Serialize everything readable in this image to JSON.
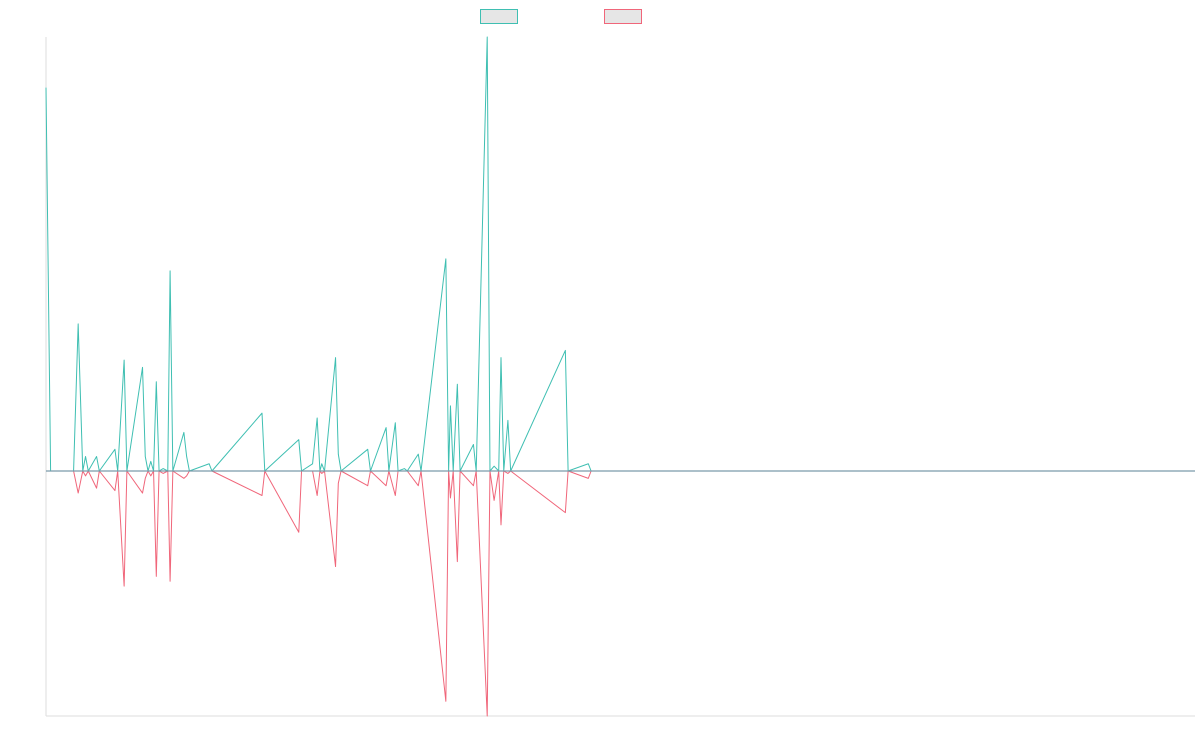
{
  "chart_data": {
    "type": "line",
    "title": "",
    "xlabel": "",
    "ylabel": "",
    "grid": false,
    "legend_position": "top-center",
    "point_count": 250,
    "ylim": [
      -100,
      180
    ],
    "colors": {
      "background": "#ffffff",
      "axis": "#dddddd",
      "baseline": "#7a9aaa",
      "legend_swatch_fill": "#e6e6e6"
    },
    "series": [
      {
        "name": "",
        "color": "#3fbfb2",
        "points": [
          [
            0,
            159
          ],
          [
            1,
            0
          ],
          [
            4,
            0
          ],
          [
            6,
            0
          ],
          [
            7,
            61
          ],
          [
            8,
            0
          ],
          [
            8.6,
            6
          ],
          [
            9.2,
            0
          ],
          [
            11,
            6
          ],
          [
            11.6,
            0
          ],
          [
            15,
            9
          ],
          [
            15.6,
            0
          ],
          [
            17,
            46
          ],
          [
            17.6,
            0
          ],
          [
            21,
            43
          ],
          [
            21.6,
            6
          ],
          [
            22.2,
            0
          ],
          [
            22.8,
            4
          ],
          [
            23.4,
            0
          ],
          [
            24,
            37
          ],
          [
            24.6,
            0
          ],
          [
            25.5,
            1
          ],
          [
            26.5,
            0
          ],
          [
            27,
            83
          ],
          [
            27.6,
            0
          ],
          [
            30,
            16
          ],
          [
            30.6,
            6
          ],
          [
            31.2,
            0
          ],
          [
            35.5,
            3
          ],
          [
            36.1,
            0
          ],
          [
            47,
            24
          ],
          [
            47.6,
            0
          ],
          [
            55,
            13
          ],
          [
            55.6,
            0
          ],
          [
            58,
            3
          ],
          [
            59,
            22
          ],
          [
            59.6,
            0
          ],
          [
            60,
            3
          ],
          [
            60.6,
            0
          ],
          [
            63,
            47
          ],
          [
            63.6,
            7
          ],
          [
            64.2,
            0
          ],
          [
            70,
            9
          ],
          [
            70.6,
            0
          ],
          [
            74,
            18
          ],
          [
            74.6,
            0
          ],
          [
            76,
            20
          ],
          [
            76.6,
            0
          ],
          [
            78,
            1
          ],
          [
            78.6,
            0
          ],
          [
            81,
            7
          ],
          [
            81.6,
            0
          ],
          [
            87,
            88
          ],
          [
            87.6,
            0
          ],
          [
            88,
            27
          ],
          [
            88.6,
            0
          ],
          [
            89.5,
            36
          ],
          [
            90.1,
            0
          ],
          [
            93,
            11
          ],
          [
            93.6,
            0
          ],
          [
            96,
            180
          ],
          [
            96.6,
            0
          ],
          [
            97.5,
            2
          ],
          [
            98.5,
            0
          ],
          [
            99,
            47
          ],
          [
            99.6,
            0
          ],
          [
            100.5,
            21
          ],
          [
            101.1,
            0
          ],
          [
            113,
            50
          ],
          [
            113.6,
            0
          ],
          [
            118,
            3
          ],
          [
            118.6,
            0
          ],
          [
            250,
            0
          ]
        ]
      },
      {
        "name": "",
        "color": "#f0667a",
        "points": [
          [
            0,
            0
          ],
          [
            6,
            0
          ],
          [
            7,
            -9
          ],
          [
            8,
            0
          ],
          [
            8.6,
            -2
          ],
          [
            9.2,
            0
          ],
          [
            11,
            -7
          ],
          [
            11.6,
            0
          ],
          [
            15,
            -8
          ],
          [
            15.6,
            0
          ],
          [
            17,
            -47
          ],
          [
            17.6,
            0
          ],
          [
            21,
            -9
          ],
          [
            21.6,
            -3
          ],
          [
            22.2,
            0
          ],
          [
            22.8,
            -2
          ],
          [
            23.4,
            0
          ],
          [
            24,
            -43
          ],
          [
            24.6,
            0
          ],
          [
            25.5,
            -1
          ],
          [
            26.5,
            0
          ],
          [
            27,
            -45
          ],
          [
            27.6,
            0
          ],
          [
            30,
            -3
          ],
          [
            30.6,
            -2
          ],
          [
            31.2,
            0
          ],
          [
            35.5,
            0
          ],
          [
            36.1,
            0
          ],
          [
            47,
            -10
          ],
          [
            47.6,
            0
          ],
          [
            55,
            -25
          ],
          [
            55.6,
            0
          ],
          [
            58,
            0
          ],
          [
            59,
            -10
          ],
          [
            59.6,
            0
          ],
          [
            60,
            -1
          ],
          [
            60.6,
            0
          ],
          [
            63,
            -39
          ],
          [
            63.6,
            -5
          ],
          [
            64.2,
            0
          ],
          [
            70,
            -6
          ],
          [
            70.6,
            0
          ],
          [
            74,
            -6
          ],
          [
            74.6,
            0
          ],
          [
            76,
            -10
          ],
          [
            76.6,
            0
          ],
          [
            78,
            0
          ],
          [
            78.6,
            0
          ],
          [
            81,
            -6
          ],
          [
            81.6,
            0
          ],
          [
            87,
            -94
          ],
          [
            87.6,
            0
          ],
          [
            88,
            -11
          ],
          [
            88.6,
            0
          ],
          [
            89.5,
            -37
          ],
          [
            90.1,
            0
          ],
          [
            93,
            -6
          ],
          [
            93.6,
            0
          ],
          [
            96,
            -100
          ],
          [
            96.6,
            0
          ],
          [
            97.5,
            -12
          ],
          [
            98.5,
            0
          ],
          [
            99,
            -22
          ],
          [
            99.6,
            0
          ],
          [
            100.5,
            -1
          ],
          [
            101.1,
            0
          ],
          [
            113,
            -17
          ],
          [
            113.6,
            0
          ],
          [
            118,
            -3
          ],
          [
            118.6,
            0
          ],
          [
            250,
            0
          ]
        ]
      }
    ]
  }
}
